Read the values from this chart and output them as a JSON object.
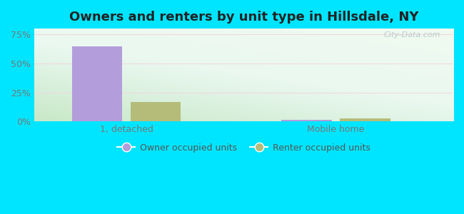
{
  "title": "Owners and renters by unit type in Hillsdale, NY",
  "categories": [
    "1, detached",
    "Mobile home"
  ],
  "owner_values": [
    65.0,
    1.5
  ],
  "renter_values": [
    17.0,
    2.5
  ],
  "owner_color": "#b39ddb",
  "renter_color": "#b5bc7a",
  "yticks": [
    0,
    25,
    50,
    75
  ],
  "ytick_labels": [
    "0%",
    "25%",
    "50%",
    "75%"
  ],
  "ylim": [
    0,
    80
  ],
  "outer_bg": "#00e5ff",
  "plot_bg_color": "#d8f0d8",
  "watermark": "City-Data.com",
  "legend_owner": "Owner occupied units",
  "legend_renter": "Renter occupied units",
  "bar_width": 0.12,
  "group_positions": [
    0.22,
    0.72
  ],
  "title_fontsize": 13,
  "tick_fontsize": 9,
  "legend_fontsize": 9,
  "grid_color": "#e8e8e8"
}
